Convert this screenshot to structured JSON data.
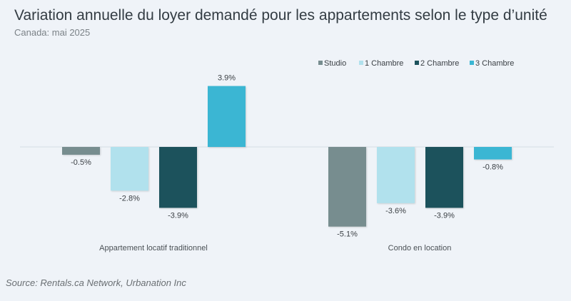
{
  "chart_data": {
    "type": "bar",
    "title": "Variation annuelle du loyer demandé pour les appartements selon le type d’unité",
    "subtitle": "Canada: mai 2025",
    "categories": [
      "Appartement locatif traditionnel",
      "Condo en location"
    ],
    "series": [
      {
        "name": "Studio",
        "color": "#778d8f",
        "values": [
          -0.5,
          -5.1
        ]
      },
      {
        "name": "1 Chambre",
        "color": "#b1e1ed",
        "values": [
          -2.8,
          -3.6
        ]
      },
      {
        "name": "2 Chambre",
        "color": "#1c525c",
        "values": [
          -3.9,
          -3.9
        ]
      },
      {
        "name": "3 Chambre",
        "color": "#3bb6d3",
        "values": [
          3.9,
          -0.8
        ]
      }
    ],
    "data_labels": [
      [
        "-0.5%",
        "-5.1%"
      ],
      [
        "-2.8%",
        "-3.6%"
      ],
      [
        "-3.9%",
        "-3.9%"
      ],
      [
        "3.9%",
        "-0.8%"
      ]
    ],
    "ylim": [
      -5.1,
      3.9
    ],
    "legend_position": "top-right",
    "grid": false,
    "xlabel": "",
    "ylabel": ""
  },
  "source": "Source: Rentals.ca Network, Urbanation Inc"
}
